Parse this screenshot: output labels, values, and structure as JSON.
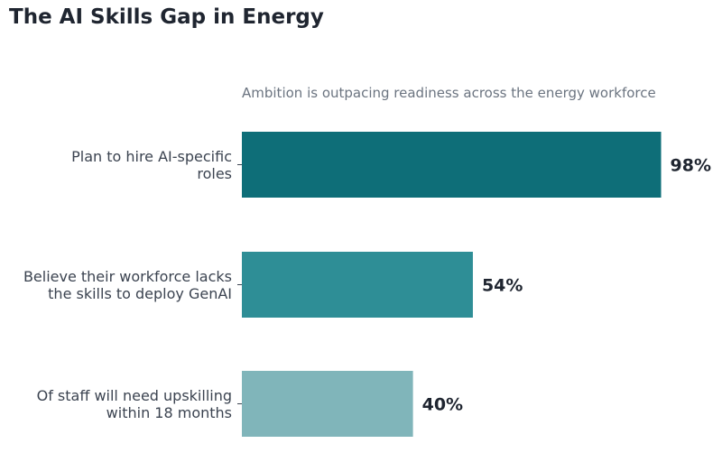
{
  "chart_data": {
    "type": "bar",
    "orientation": "horizontal",
    "title": "The AI Skills Gap in Energy",
    "subtitle": "Ambition is outpacing readiness across the energy workforce",
    "categories": [
      [
        "Plan to hire AI-specific",
        "roles"
      ],
      [
        "Believe their workforce lacks",
        "the skills to deploy GenAI"
      ],
      [
        "Of staff will need upskilling",
        "within 18 months"
      ]
    ],
    "values": [
      98,
      54,
      40
    ],
    "value_labels": [
      "98%",
      "54%",
      "40%"
    ],
    "colors": [
      "#0e6e78",
      "#2e8e96",
      "#80b5ba"
    ],
    "xlim": [
      0,
      100
    ],
    "grid": false,
    "legend": "none"
  }
}
